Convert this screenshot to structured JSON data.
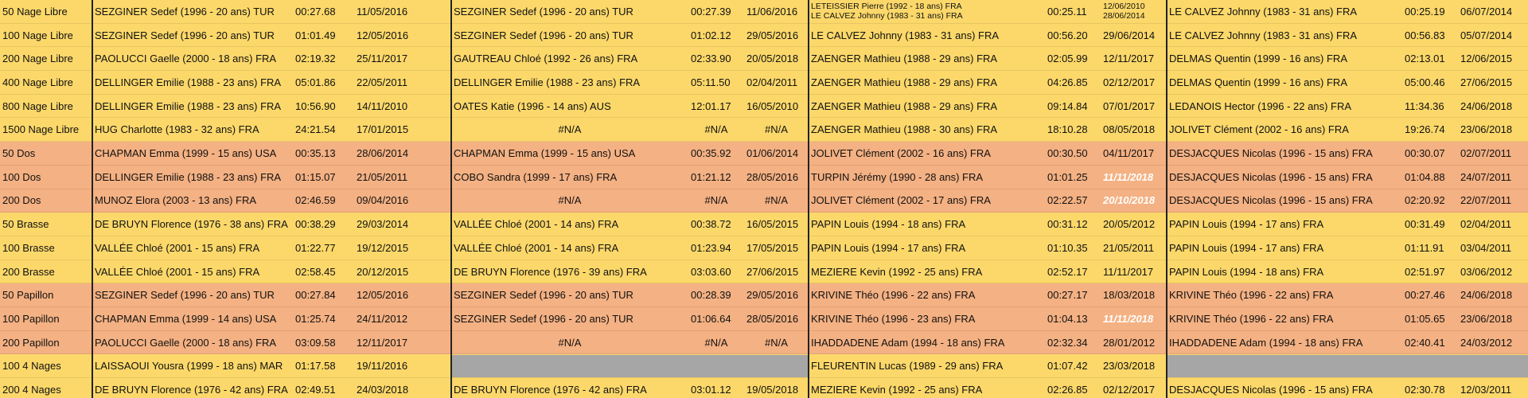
{
  "table": {
    "rows": [
      {
        "event": "50 Nage Libre",
        "color": "#fcd86a",
        "blocks": [
          {
            "name": "SEZGINER Sedef (1996 - 20 ans) TUR",
            "time": "00:27.68",
            "date": "11/05/2016"
          },
          {
            "name": "SEZGINER Sedef (1996 - 20 ans) TUR",
            "time": "00:27.39",
            "date": "11/06/2016"
          },
          {
            "name": [
              "LETEISSIER Pierre (1992 - 18 ans) FRA",
              "LE CALVEZ Johnny (1983 - 31 ans) FRA"
            ],
            "time": "00:25.11",
            "date": [
              "12/06/2010",
              "28/06/2014"
            ]
          },
          {
            "name": "LE CALVEZ Johnny (1983 - 31 ans) FRA",
            "time": "00:25.19",
            "date": "06/07/2014"
          }
        ]
      },
      {
        "event": "100 Nage Libre",
        "color": "#fcd86a",
        "blocks": [
          {
            "name": "SEZGINER Sedef (1996 - 20 ans) TUR",
            "time": "01:01.49",
            "date": "12/05/2016"
          },
          {
            "name": "SEZGINER Sedef (1996 - 20 ans) TUR",
            "time": "01:02.12",
            "date": "29/05/2016"
          },
          {
            "name": "LE CALVEZ Johnny (1983 - 31 ans) FRA",
            "time": "00:56.20",
            "date": "29/06/2014"
          },
          {
            "name": "LE CALVEZ Johnny (1983 - 31 ans) FRA",
            "time": "00:56.83",
            "date": "05/07/2014"
          }
        ]
      },
      {
        "event": "200 Nage Libre",
        "color": "#fcd86a",
        "blocks": [
          {
            "name": "PAOLUCCI Gaelle (2000 - 18 ans) FRA",
            "time": "02:19.32",
            "date": "25/11/2017"
          },
          {
            "name": "GAUTREAU Chloé (1992 - 26 ans) FRA",
            "time": "02:33.90",
            "date": "20/05/2018"
          },
          {
            "name": "ZAENGER Mathieu (1988 - 29 ans) FRA",
            "time": "02:05.99",
            "date": "12/11/2017"
          },
          {
            "name": "DELMAS Quentin (1999 - 16 ans) FRA",
            "time": "02:13.01",
            "date": "12/06/2015"
          }
        ]
      },
      {
        "event": "400 Nage Libre",
        "color": "#fcd86a",
        "blocks": [
          {
            "name": "DELLINGER Emilie (1988 - 23 ans) FRA",
            "time": "05:01.86",
            "date": "22/05/2011"
          },
          {
            "name": "DELLINGER Emilie (1988 - 23 ans) FRA",
            "time": "05:11.50",
            "date": "02/04/2011"
          },
          {
            "name": "ZAENGER Mathieu (1988 - 29 ans) FRA",
            "time": "04:26.85",
            "date": "02/12/2017"
          },
          {
            "name": "DELMAS Quentin (1999 - 16 ans) FRA",
            "time": "05:00.46",
            "date": "27/06/2015"
          }
        ]
      },
      {
        "event": "800 Nage Libre",
        "color": "#fcd86a",
        "blocks": [
          {
            "name": "DELLINGER Emilie (1988 - 23 ans) FRA",
            "time": "10:56.90",
            "date": "14/11/2010"
          },
          {
            "name": "OATES Katie (1996 - 14 ans) AUS",
            "time": "12:01.17",
            "date": "16/05/2010"
          },
          {
            "name": "ZAENGER Mathieu (1988 - 29 ans) FRA",
            "time": "09:14.84",
            "date": "07/01/2017"
          },
          {
            "name": "LEDANOIS Hector (1996 - 22 ans) FRA",
            "time": "11:34.36",
            "date": "24/06/2018"
          }
        ]
      },
      {
        "event": "1500 Nage Libre",
        "color": "#fcd86a",
        "blocks": [
          {
            "name": "HUG Charlotte (1983 - 32 ans) FRA",
            "time": "24:21.54",
            "date": "17/01/2015"
          },
          {
            "name": "#N/A",
            "time": "#N/A",
            "date": "#N/A",
            "align": "center"
          },
          {
            "name": "ZAENGER Mathieu (1988 - 30 ans) FRA",
            "time": "18:10.28",
            "date": "08/05/2018"
          },
          {
            "name": "JOLIVET Clément (2002 - 16 ans) FRA",
            "time": "19:26.74",
            "date": "23/06/2018"
          }
        ]
      },
      {
        "event": "50 Dos",
        "color": "#f4b183",
        "blocks": [
          {
            "name": "CHAPMAN Emma (1999 - 15 ans) USA",
            "time": "00:35.13",
            "date": "28/06/2014"
          },
          {
            "name": "CHAPMAN Emma (1999 - 15 ans) USA",
            "time": "00:35.92",
            "date": "01/06/2014"
          },
          {
            "name": "JOLIVET Clément (2002 - 16 ans) FRA",
            "time": "00:30.50",
            "date": "04/11/2017"
          },
          {
            "name": "DESJACQUES Nicolas (1996 - 15 ans) FRA",
            "time": "00:30.07",
            "date": "02/07/2011"
          }
        ]
      },
      {
        "event": "100 Dos",
        "color": "#f4b183",
        "blocks": [
          {
            "name": "DELLINGER Emilie (1988 - 23 ans) FRA",
            "time": "01:15.07",
            "date": "21/05/2011"
          },
          {
            "name": "COBO Sandra (1999 - 17 ans) FRA",
            "time": "01:21.12",
            "date": "28/05/2016"
          },
          {
            "name": "TURPIN Jérémy (1990 - 28 ans) FRA",
            "time": "01:01.25",
            "date": "11/11/2018",
            "highlight": true
          },
          {
            "name": "DESJACQUES Nicolas (1996 - 15 ans) FRA",
            "time": "01:04.88",
            "date": "24/07/2011"
          }
        ]
      },
      {
        "event": "200 Dos",
        "color": "#f4b183",
        "blocks": [
          {
            "name": "MUNOZ Elora (2003 - 13 ans) FRA",
            "time": "02:46.59",
            "date": "09/04/2016"
          },
          {
            "name": "#N/A",
            "time": "#N/A",
            "date": "#N/A",
            "align": "center"
          },
          {
            "name": "JOLIVET Clément (2002 - 17 ans) FRA",
            "time": "02:22.57",
            "date": "20/10/2018",
            "highlight": true
          },
          {
            "name": "DESJACQUES Nicolas (1996 - 15 ans) FRA",
            "time": "02:20.92",
            "date": "22/07/2011"
          }
        ]
      },
      {
        "event": "50 Brasse",
        "color": "#fcd86a",
        "blocks": [
          {
            "name": "DE BRUYN Florence (1976 - 38 ans) FRA",
            "time": "00:38.29",
            "date": "29/03/2014"
          },
          {
            "name": "VALLÉE Chloé (2001 - 14 ans) FRA",
            "time": "00:38.72",
            "date": "16/05/2015"
          },
          {
            "name": "PAPIN Louis (1994 - 18 ans) FRA",
            "time": "00:31.12",
            "date": "20/05/2012"
          },
          {
            "name": "PAPIN Louis (1994 - 17 ans) FRA",
            "time": "00:31.49",
            "date": "02/04/2011"
          }
        ]
      },
      {
        "event": "100 Brasse",
        "color": "#fcd86a",
        "blocks": [
          {
            "name": "VALLÉE Chloé (2001 - 15 ans) FRA",
            "time": "01:22.77",
            "date": "19/12/2015"
          },
          {
            "name": "VALLÉE Chloé (2001 - 14 ans) FRA",
            "time": "01:23.94",
            "date": "17/05/2015"
          },
          {
            "name": "PAPIN Louis (1994 - 17 ans) FRA",
            "time": "01:10.35",
            "date": "21/05/2011"
          },
          {
            "name": "PAPIN Louis (1994 - 17 ans) FRA",
            "time": "01:11.91",
            "date": "03/04/2011"
          }
        ]
      },
      {
        "event": "200 Brasse",
        "color": "#fcd86a",
        "blocks": [
          {
            "name": "VALLÉE Chloé (2001 - 15 ans) FRA",
            "time": "02:58.45",
            "date": "20/12/2015"
          },
          {
            "name": "DE BRUYN Florence (1976 - 39 ans) FRA",
            "time": "03:03.60",
            "date": "27/06/2015"
          },
          {
            "name": "MEZIERE Kevin (1992 - 25 ans) FRA",
            "time": "02:52.17",
            "date": "11/11/2017"
          },
          {
            "name": "PAPIN Louis (1994 - 18 ans) FRA",
            "time": "02:51.97",
            "date": "03/06/2012"
          }
        ]
      },
      {
        "event": "50 Papillon",
        "color": "#f4b183",
        "blocks": [
          {
            "name": "SEZGINER Sedef (1996 - 20 ans) TUR",
            "time": "00:27.84",
            "date": "12/05/2016"
          },
          {
            "name": "SEZGINER Sedef (1996 - 20 ans) TUR",
            "time": "00:28.39",
            "date": "29/05/2016"
          },
          {
            "name": "KRIVINE Théo (1996 - 22 ans) FRA",
            "time": "00:27.17",
            "date": "18/03/2018"
          },
          {
            "name": "KRIVINE Théo (1996 - 22 ans) FRA",
            "time": "00:27.46",
            "date": "24/06/2018"
          }
        ]
      },
      {
        "event": "100 Papillon",
        "color": "#f4b183",
        "blocks": [
          {
            "name": "CHAPMAN Emma (1999 - 14 ans) USA",
            "time": "01:25.74",
            "date": "24/11/2012"
          },
          {
            "name": "SEZGINER Sedef (1996 - 20 ans) TUR",
            "time": "01:06.64",
            "date": "28/05/2016"
          },
          {
            "name": "KRIVINE Théo (1996 - 23 ans) FRA",
            "time": "01:04.13",
            "date": "11/11/2018",
            "highlight": true
          },
          {
            "name": "KRIVINE Théo (1996 - 22 ans) FRA",
            "time": "01:05.65",
            "date": "23/06/2018"
          }
        ]
      },
      {
        "event": "200 Papillon",
        "color": "#f4b183",
        "blocks": [
          {
            "name": "PAOLUCCI Gaelle (2000 - 18 ans) FRA",
            "time": "03:09.58",
            "date": "12/11/2017"
          },
          {
            "name": "#N/A",
            "time": "#N/A",
            "date": "#N/A",
            "align": "center"
          },
          {
            "name": "IHADDADENE Adam (1994 - 18 ans) FRA",
            "time": "02:32.34",
            "date": "28/01/2012"
          },
          {
            "name": "IHADDADENE Adam (1994 - 18 ans) FRA",
            "time": "02:40.41",
            "date": "24/03/2012"
          }
        ]
      },
      {
        "event": "100 4 Nages",
        "color": "#fcd86a",
        "blocks": [
          {
            "name": "LAISSAOUI Yousra (1999 - 18 ans) MAR",
            "time": "01:17.58",
            "date": "19/11/2016"
          },
          null,
          {
            "name": "FLEURENTIN Lucas (1989 - 29 ans) FRA",
            "time": "01:07.42",
            "date": "23/03/2018"
          },
          null
        ]
      },
      {
        "event": "200 4 Nages",
        "color": "#fcd86a",
        "blocks": [
          {
            "name": "DE BRUYN Florence (1976 - 42 ans) FRA",
            "time": "02:49.51",
            "date": "24/03/2018"
          },
          {
            "name": "DE BRUYN Florence (1976 - 42 ans) FRA",
            "time": "03:01.12",
            "date": "19/05/2018"
          },
          {
            "name": "MEZIERE Kevin (1992 - 25 ans) FRA",
            "time": "02:26.85",
            "date": "02/12/2017"
          },
          {
            "name": "DESJACQUES Nicolas (1996 - 15 ans) FRA",
            "time": "02:30.78",
            "date": "12/03/2011"
          }
        ]
      }
    ]
  }
}
